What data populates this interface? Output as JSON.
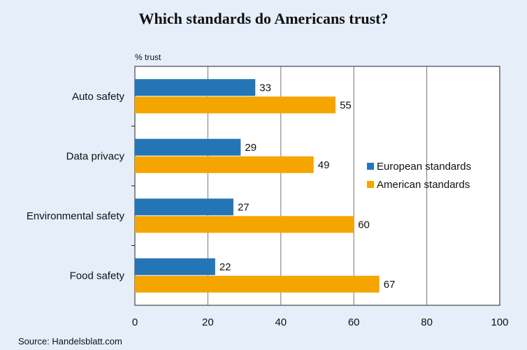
{
  "chart_data": {
    "type": "bar",
    "orientation": "horizontal",
    "title": "Which standards do Americans trust?",
    "unit_label": "% trust",
    "source": "Source: Handelsblatt.com",
    "categories": [
      "Auto safety",
      "Data privacy",
      "Environmental safety",
      "Food safety"
    ],
    "series": [
      {
        "name": "European standards",
        "values": [
          33,
          29,
          27,
          22
        ],
        "color": "#2475b6"
      },
      {
        "name": "American standards",
        "values": [
          55,
          49,
          60,
          67
        ],
        "color": "#f5a500"
      }
    ],
    "xlim": [
      0,
      100
    ],
    "xticks": [
      0,
      20,
      40,
      60,
      80,
      100
    ],
    "grid": true,
    "legend_position": "right"
  }
}
